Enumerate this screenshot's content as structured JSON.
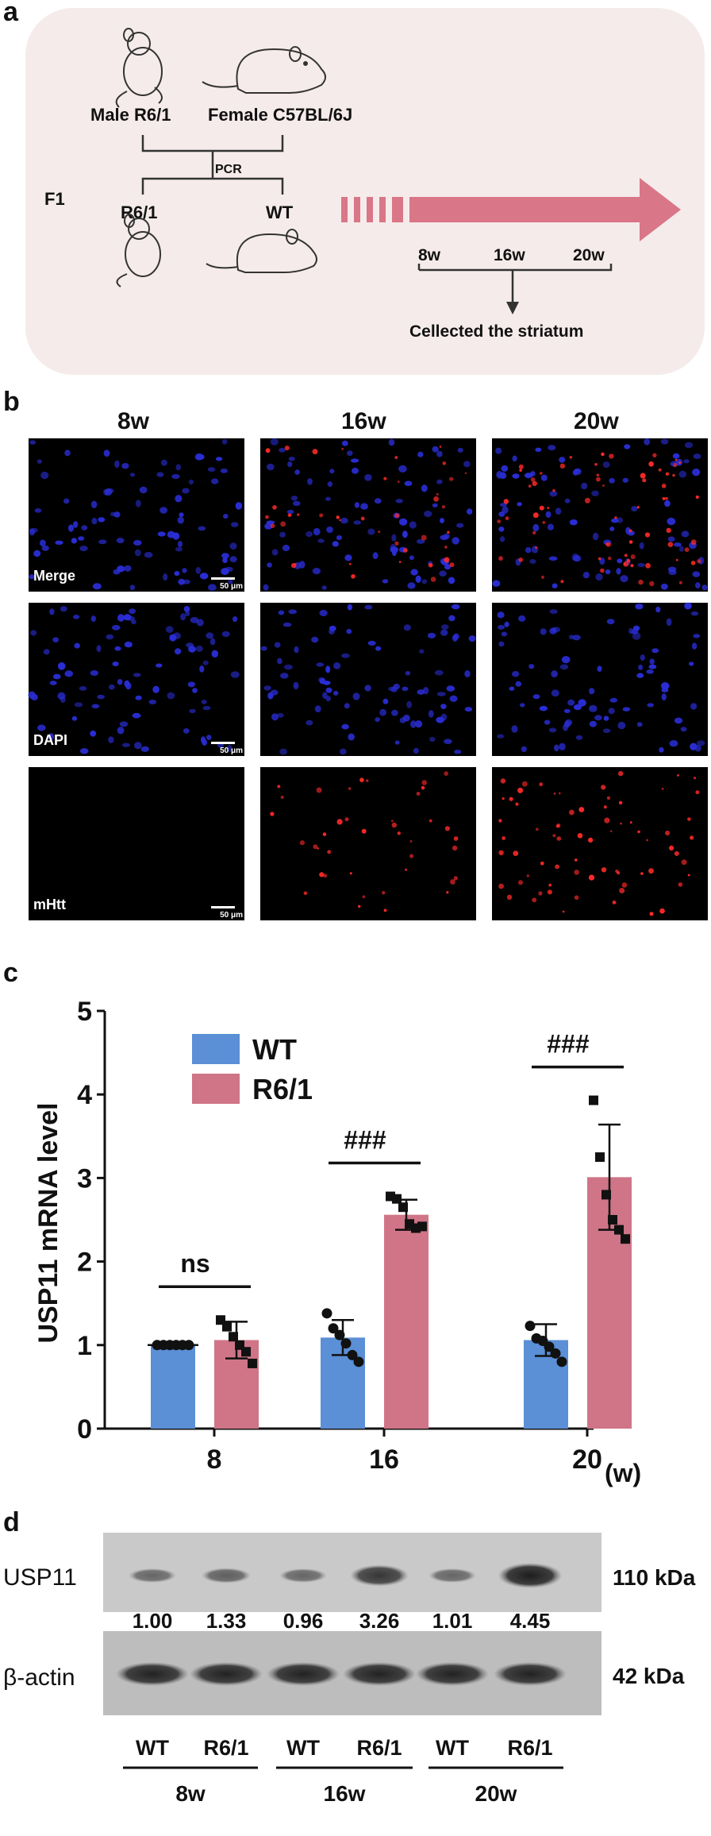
{
  "panel_a": {
    "letter": "a",
    "male_label": "Male R6/1",
    "female_label": "Female C57BL/6J",
    "pcr_label": "PCR",
    "f1_label": "F1",
    "offspring_r61": "R6/1",
    "offspring_wt": "WT",
    "timeline_ticks": [
      "8w",
      "16w",
      "20w"
    ],
    "collected_label": "Cellected the striatum",
    "colors": {
      "background": "#f5ebea",
      "arrow": "#d97688"
    }
  },
  "panel_b": {
    "letter": "b",
    "column_headers": [
      "8w",
      "16w",
      "20w"
    ],
    "row_labels": [
      "Merge",
      "DAPI",
      "mHtt"
    ],
    "scale_bar_label": "50 μm",
    "colors": {
      "nuclei": "#2a2ed6",
      "mhtt": "#ff2a2a"
    }
  },
  "panel_c": {
    "letter": "c",
    "x_unit_label": "(w)",
    "significance": [
      "ns",
      "###",
      "###"
    ],
    "colors": {
      "wt": "#5b8fd6",
      "r61": "#cf7587"
    }
  },
  "chart_data": {
    "type": "bar",
    "ylabel": "USP11 mRNA level",
    "xlabel": "",
    "categories": [
      "8",
      "16",
      "20"
    ],
    "ylim": [
      0,
      5
    ],
    "yticks": [
      "0",
      "1",
      "2",
      "3",
      "4",
      "5"
    ],
    "legend_position": "top-left",
    "series": [
      {
        "name": "WT",
        "values": [
          1.0,
          1.09,
          1.06
        ],
        "errors": [
          0.0,
          0.21,
          0.19
        ],
        "points": [
          [
            1,
            1,
            1,
            1,
            1,
            1
          ],
          [
            1.38,
            1.2,
            1.12,
            1.02,
            0.88,
            0.8
          ],
          [
            1.23,
            1.08,
            1.05,
            0.98,
            0.9,
            0.8
          ]
        ]
      },
      {
        "name": "R6/1",
        "values": [
          1.06,
          2.56,
          3.01
        ],
        "errors": [
          0.22,
          0.18,
          0.63
        ],
        "points": [
          [
            1.3,
            1.22,
            1.1,
            1.0,
            0.92,
            0.78
          ],
          [
            2.78,
            2.75,
            2.65,
            2.45,
            2.4,
            2.42
          ],
          [
            3.93,
            3.25,
            2.8,
            2.5,
            2.38,
            2.27
          ]
        ]
      }
    ]
  },
  "panel_d": {
    "letter": "d",
    "usp11_label": "USP11",
    "actin_label": "β-actin",
    "usp11_kda": "110 kDa",
    "actin_kda": "42 kDa",
    "quantification": [
      "1.00",
      "1.33",
      "0.96",
      "3.26",
      "1.01",
      "4.45"
    ],
    "lane_labels": [
      "WT",
      "R6/1",
      "WT",
      "R6/1",
      "WT",
      "R6/1"
    ],
    "group_labels": [
      "8w",
      "16w",
      "20w"
    ]
  }
}
